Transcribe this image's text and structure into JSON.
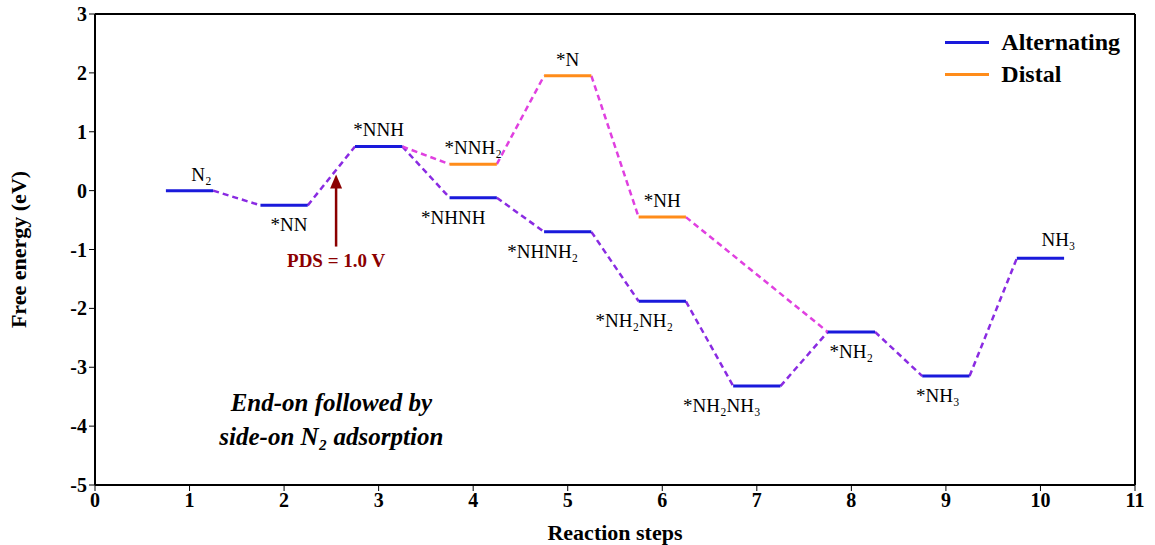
{
  "chart_data": {
    "type": "line",
    "x_label": "Reaction steps",
    "y_label": "Free energy (eV)",
    "xlim": [
      0,
      11
    ],
    "xticks": [
      0,
      1,
      2,
      3,
      4,
      5,
      6,
      7,
      8,
      9,
      10,
      11
    ],
    "ylim": [
      -5,
      3
    ],
    "yticks": [
      -5,
      -4,
      -3,
      -2,
      -1,
      0,
      1,
      2,
      3
    ],
    "legend": "top right",
    "series": [
      {
        "name": "Alternating",
        "color": "#1a1adb",
        "line_style": "solid",
        "x": [
          1,
          2,
          3,
          4,
          5,
          6,
          7,
          8,
          9,
          10
        ],
        "values": [
          0.0,
          -0.25,
          0.75,
          -0.12,
          -0.7,
          -1.88,
          -3.32,
          -2.4,
          -3.15,
          -1.15
        ],
        "labels": [
          "N₂",
          "*NN",
          "*NNH",
          "*NHNH",
          "*NHNH₂",
          "*NH₂NH₂",
          "*NH₂NH₃",
          "*NH₂",
          "*NH₃",
          "NH₃"
        ]
      },
      {
        "name": "Distal",
        "color": "#ff8c1a",
        "line_style": "solid",
        "x": [
          4,
          5,
          6
        ],
        "values": [
          0.45,
          1.95,
          -0.45
        ],
        "labels": [
          "*NNH₂",
          "*N",
          "*NH"
        ],
        "branches_from": 3,
        "rejoins_at": 8
      }
    ],
    "annotations": [
      "PDS = 1.0 V"
    ],
    "note": [
      "End-on followed by",
      "side-on N₂ adsorption"
    ]
  }
}
